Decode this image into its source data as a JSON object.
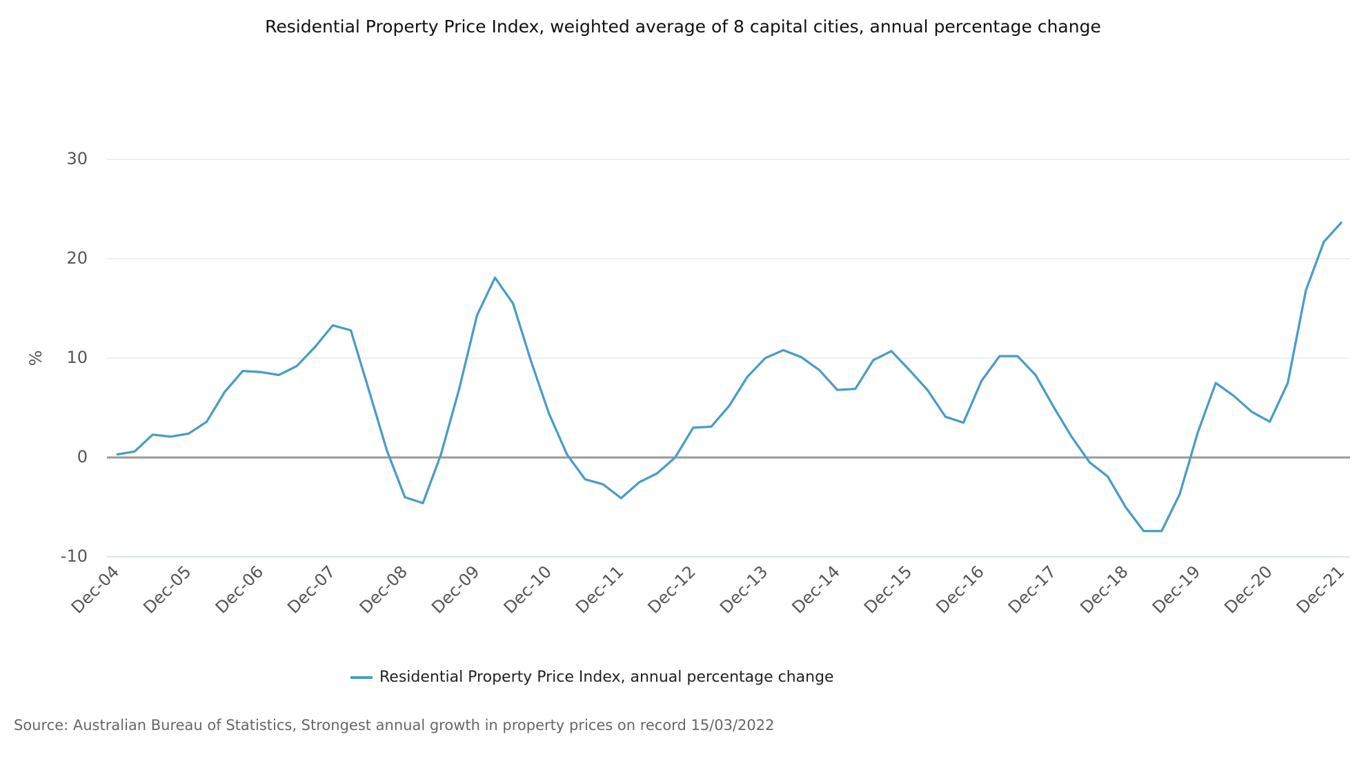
{
  "chart_data": {
    "type": "line",
    "title": "Residential Property Price Index, weighted average of 8 capital cities, annual percentage change",
    "y_label": "%",
    "source": "Source: Australian Bureau of Statistics, Strongest annual growth in property prices on record 15/03/2022",
    "categories": [
      "Dec-04",
      null,
      null,
      null,
      "Dec-05",
      null,
      null,
      null,
      "Dec-06",
      null,
      null,
      null,
      "Dec-07",
      null,
      null,
      null,
      "Dec-08",
      null,
      null,
      null,
      "Dec-09",
      null,
      null,
      null,
      "Dec-10",
      null,
      null,
      null,
      "Dec-11",
      null,
      null,
      null,
      "Dec-12",
      null,
      null,
      null,
      "Dec-13",
      null,
      null,
      null,
      "Dec-14",
      null,
      null,
      null,
      "Dec-15",
      null,
      null,
      null,
      "Dec-16",
      null,
      null,
      null,
      "Dec-17",
      null,
      null,
      null,
      "Dec-18",
      null,
      null,
      null,
      "Dec-19",
      null,
      null,
      null,
      "Dec-20",
      null,
      null,
      null,
      "Dec-21"
    ],
    "series": [
      {
        "name": "Residential Property Price Index, annual percentage change",
        "color": "#4a9cc8",
        "values": [
          0.3,
          0.6,
          2.3,
          2.1,
          2.4,
          3.6,
          6.6,
          8.7,
          8.6,
          8.3,
          9.2,
          11.1,
          13.3,
          12.8,
          6.8,
          0.7,
          -4.0,
          -4.6,
          0.3,
          6.8,
          14.3,
          18.1,
          15.5,
          9.7,
          4.4,
          0.3,
          -2.2,
          -2.7,
          -4.1,
          -2.5,
          -1.6,
          0,
          3.0,
          3.1,
          5.2,
          8.1,
          10.0,
          10.8,
          10.1,
          8.8,
          6.8,
          6.9,
          9.8,
          10.7,
          8.8,
          6.8,
          4.1,
          3.5,
          7.7,
          10.2,
          10.2,
          8.3,
          5.1,
          2.1,
          -0.5,
          -1.9,
          -5.0,
          -7.4,
          -7.4,
          -3.7,
          2.5,
          7.5,
          6.2,
          4.6,
          3.6,
          7.5,
          16.8,
          21.7,
          23.7
        ]
      }
    ],
    "ylim": [
      -10,
      30
    ],
    "yticks": [
      -10,
      0,
      10,
      20,
      30
    ],
    "grid": true,
    "legend": "bottom"
  }
}
